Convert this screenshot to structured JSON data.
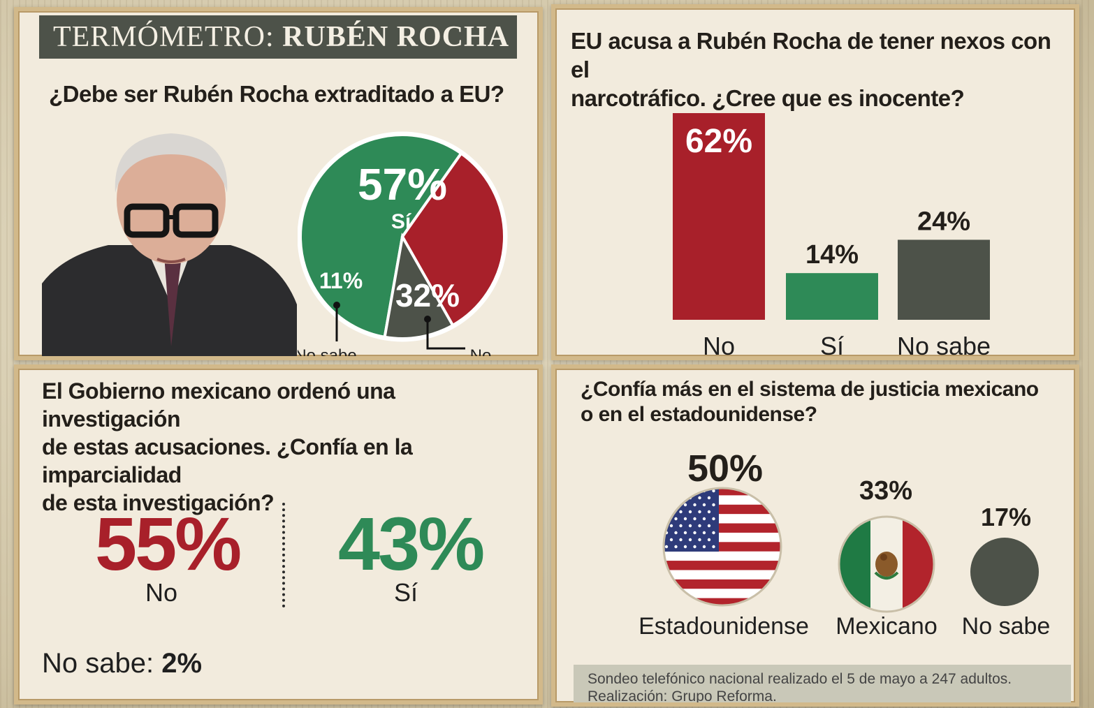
{
  "banner": {
    "prefix": "TERMÓMETRO:",
    "name": "RUBÉN ROCHA"
  },
  "colors": {
    "red": "#a8202a",
    "green": "#2e8a57",
    "gray": "#4d5249"
  },
  "panel1": {
    "question": "¿Debe ser Rubén Rocha extraditado a EU?",
    "pie_labels": {
      "si_pct": "57%",
      "si": "Sí",
      "no_pct": "32%",
      "nosabe_pct": "11%",
      "no_callout": "No",
      "nosabe_callout": "No sabe"
    }
  },
  "panel2": {
    "question_line1": "EU acusa a Rubén Rocha de tener nexos con el",
    "question_line2": "narcotráfico. ¿Cree que es inocente?",
    "bar_labels": [
      {
        "pct": "62%",
        "cat": "No"
      },
      {
        "pct": "14%",
        "cat": "Sí"
      },
      {
        "pct": "24%",
        "cat": "No sabe"
      }
    ]
  },
  "panel3": {
    "question_line1": "El Gobierno mexicano ordenó una investigación",
    "question_line2": "de estas acusaciones. ¿Confía en la imparcialidad",
    "question_line3": "de esta investigación?",
    "no_pct": "55%",
    "no_label": "No",
    "si_pct": "43%",
    "si_label": "Sí",
    "nosabe_label": "No sabe:",
    "nosabe_pct": "2%"
  },
  "panel4": {
    "question_line1": "¿Confía más en el sistema de justicia mexicano",
    "question_line2": "o en el estadounidense?",
    "items": [
      {
        "pct": "50%",
        "label": "Estadounidense",
        "icon": "us-flag-icon"
      },
      {
        "pct": "33%",
        "label": "Mexicano",
        "icon": "mexico-flag-icon"
      },
      {
        "pct": "17%",
        "label": "No sabe",
        "icon": "gray-circle-icon"
      }
    ],
    "footnote_line1": "Sondeo telefónico nacional realizado el 5 de mayo a 247 adultos.",
    "footnote_line2": "Realización: Grupo Reforma."
  },
  "chart_data": [
    {
      "type": "pie",
      "title": "¿Debe ser Rubén Rocha extraditado a EU?",
      "categories": [
        "Sí",
        "No",
        "No sabe"
      ],
      "values": [
        57,
        32,
        11
      ],
      "colors": [
        "#2e8a57",
        "#a8202a",
        "#4d5249"
      ]
    },
    {
      "type": "bar",
      "title": "EU acusa a Rubén Rocha de tener nexos con el narcotráfico. ¿Cree que es inocente?",
      "categories": [
        "No",
        "Sí",
        "No sabe"
      ],
      "values": [
        62,
        14,
        24
      ],
      "colors": [
        "#a8202a",
        "#2e8a57",
        "#4d5249"
      ],
      "ylim": [
        0,
        62
      ]
    },
    {
      "type": "table",
      "title": "El Gobierno mexicano ordenó una investigación de estas acusaciones. ¿Confía en la imparcialidad de esta investigación?",
      "categories": [
        "No",
        "Sí",
        "No sabe"
      ],
      "values": [
        55,
        43,
        2
      ]
    },
    {
      "type": "bar",
      "title": "¿Confía más en el sistema de justicia mexicano o en el estadounidense?",
      "categories": [
        "Estadounidense",
        "Mexicano",
        "No sabe"
      ],
      "values": [
        50,
        33,
        17
      ]
    }
  ]
}
